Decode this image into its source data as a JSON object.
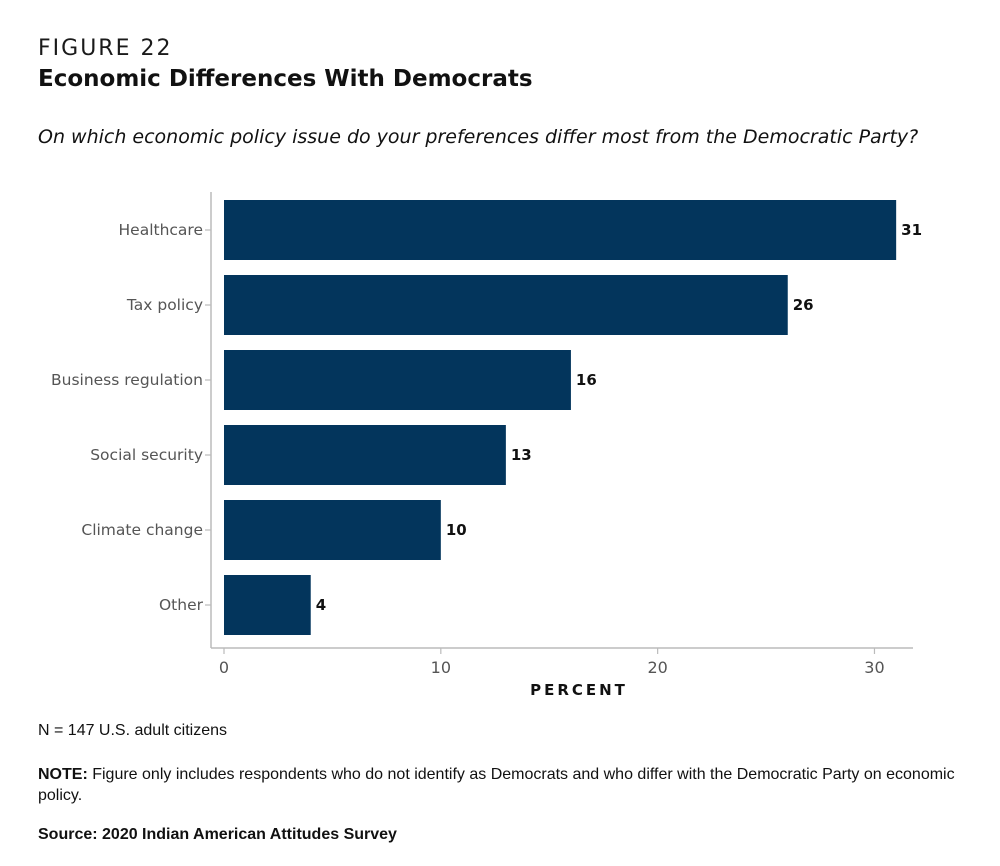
{
  "header": {
    "figure_label": "FIGURE 22",
    "title": "Economic Differences With Democrats",
    "subtitle": "On which economic policy issue do your preferences differ most from the Democratic Party?"
  },
  "chart_data": {
    "type": "bar",
    "orientation": "horizontal",
    "categories": [
      "Healthcare",
      "Tax policy",
      "Business regulation",
      "Social security",
      "Climate change",
      "Other"
    ],
    "values": [
      31,
      26,
      16,
      13,
      10,
      4
    ],
    "value_labels": [
      "31",
      "26",
      "16",
      "13",
      "10",
      "4"
    ],
    "xlabel": "PERCENT",
    "ylabel": "",
    "xlim": [
      0,
      31.5
    ],
    "xticks": [
      0,
      10,
      20,
      30
    ],
    "xtick_labels": [
      "0",
      "10",
      "20",
      "30"
    ],
    "bar_color": "#03355c",
    "grid": false,
    "legend": "none"
  },
  "footer": {
    "sample": "N = 147 U.S. adult citizens",
    "note_label": "NOTE:",
    "note_text": " Figure only includes respondents who do not identify as Democrats and who differ with the Democratic Party on economic policy.",
    "source": "Source: 2020 Indian American Attitudes Survey"
  }
}
